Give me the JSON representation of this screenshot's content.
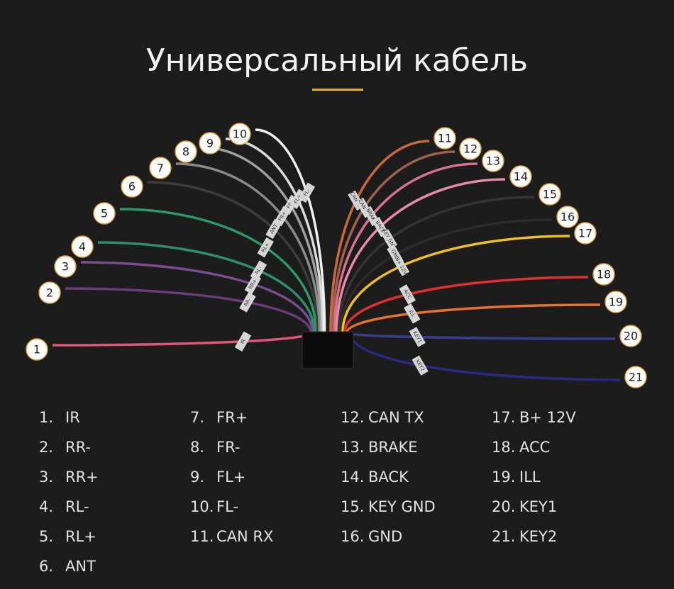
{
  "title": "Универсальный кабель",
  "pins": [
    {
      "callout": "1",
      "number": "1.",
      "label": "IR"
    },
    {
      "callout": "2",
      "number": "2.",
      "label": "RR-"
    },
    {
      "callout": "3",
      "number": "3.",
      "label": "RR+"
    },
    {
      "callout": "4",
      "number": "4.",
      "label": "RL-"
    },
    {
      "callout": "5",
      "number": "5.",
      "label": "RL+"
    },
    {
      "callout": "6",
      "number": "6.",
      "label": "ANT"
    },
    {
      "callout": "7",
      "number": "7.",
      "label": "FR+"
    },
    {
      "callout": "8",
      "number": "8.",
      "label": "FR-"
    },
    {
      "callout": "9",
      "number": "9.",
      "label": "FL+"
    },
    {
      "callout": "10",
      "number": "10.",
      "label": "FL-"
    },
    {
      "callout": "11",
      "number": "11.",
      "label": "CAN RX"
    },
    {
      "callout": "12",
      "number": "12.",
      "label": "CAN TX"
    },
    {
      "callout": "13",
      "number": "13.",
      "label": "BRAKE"
    },
    {
      "callout": "14",
      "number": "14.",
      "label": "BACK"
    },
    {
      "callout": "15",
      "number": "15.",
      "label": "KEY GND"
    },
    {
      "callout": "16",
      "number": "16.",
      "label": "GND"
    },
    {
      "callout": "17",
      "number": "17.",
      "label": "B+ 12V"
    },
    {
      "callout": "18",
      "number": "18.",
      "label": "ACC"
    },
    {
      "callout": "19",
      "number": "19.",
      "label": "ILL"
    },
    {
      "callout": "20",
      "number": "20.",
      "label": "KEY1"
    },
    {
      "callout": "21",
      "number": "21.",
      "label": "KEY2"
    }
  ]
}
